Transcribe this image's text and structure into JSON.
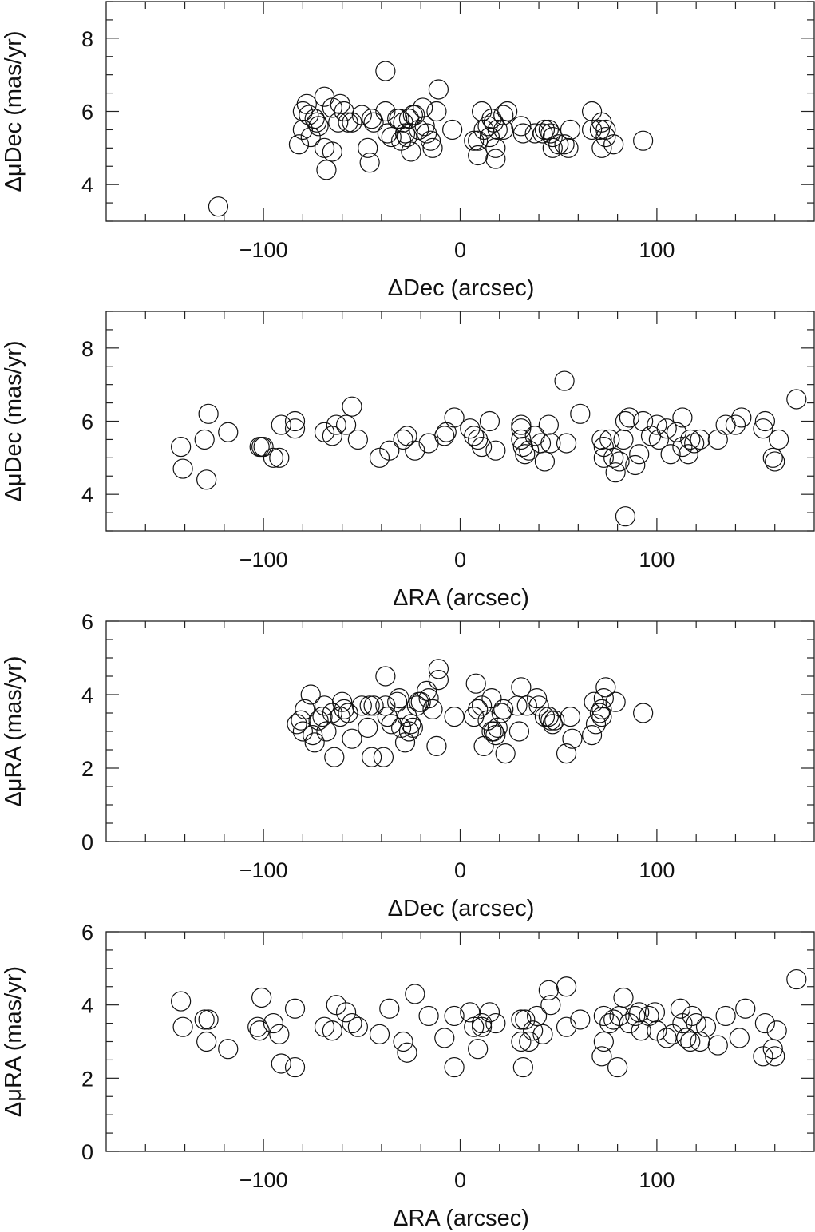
{
  "chart_data": [
    {
      "type": "scatter",
      "xlabel": "ΔDec (arcsec)",
      "ylabel": "ΔμDec (mas/yr)",
      "xlim": [
        -180,
        180
      ],
      "ylim": [
        3,
        9
      ],
      "xticks": [
        -100,
        0,
        100
      ],
      "xtick_labels": [
        "−100",
        "0",
        "100"
      ],
      "yticks": [
        4,
        6,
        8
      ],
      "ytick_labels": [
        "4",
        "6",
        "8"
      ],
      "points": [
        [
          -123,
          3.4
        ],
        [
          -82,
          5.1
        ],
        [
          -80,
          5.5
        ],
        [
          -80,
          6.0
        ],
        [
          -78,
          6.2
        ],
        [
          -77,
          5.9
        ],
        [
          -76,
          5.3
        ],
        [
          -74,
          5.8
        ],
        [
          -73,
          5.7
        ],
        [
          -72,
          5.6
        ],
        [
          -69,
          6.4
        ],
        [
          -69,
          5.0
        ],
        [
          -68,
          4.4
        ],
        [
          -65,
          4.9
        ],
        [
          -65,
          6.1
        ],
        [
          -62,
          5.7
        ],
        [
          -61,
          6.2
        ],
        [
          -59,
          6.0
        ],
        [
          -57,
          5.7
        ],
        [
          -55,
          5.7
        ],
        [
          -50,
          5.9
        ],
        [
          -47,
          5.0
        ],
        [
          -46,
          4.6
        ],
        [
          -45,
          5.8
        ],
        [
          -44,
          5.7
        ],
        [
          -38,
          7.1
        ],
        [
          -38,
          6.0
        ],
        [
          -37,
          5.4
        ],
        [
          -35,
          5.3
        ],
        [
          -32,
          5.8
        ],
        [
          -31,
          5.8
        ],
        [
          -30,
          5.2
        ],
        [
          -29,
          5.7
        ],
        [
          -28,
          5.4
        ],
        [
          -27,
          5.3
        ],
        [
          -26,
          5.8
        ],
        [
          -25,
          4.9
        ],
        [
          -24,
          5.9
        ],
        [
          -23,
          5.9
        ],
        [
          -21,
          5.5
        ],
        [
          -19,
          6.1
        ],
        [
          -18,
          5.6
        ],
        [
          -17,
          5.4
        ],
        [
          -15,
          5.2
        ],
        [
          -14,
          5.0
        ],
        [
          -12,
          6.0
        ],
        [
          -11,
          6.6
        ],
        [
          -4,
          5.5
        ],
        [
          7,
          5.2
        ],
        [
          9,
          5.2
        ],
        [
          9,
          4.8
        ],
        [
          11,
          6.0
        ],
        [
          12,
          5.5
        ],
        [
          14,
          5.6
        ],
        [
          15,
          5.3
        ],
        [
          16,
          5.8
        ],
        [
          17,
          5.7
        ],
        [
          18,
          4.7
        ],
        [
          18,
          5.0
        ],
        [
          19,
          5.5
        ],
        [
          22,
          5.9
        ],
        [
          22,
          5.5
        ],
        [
          24,
          6.0
        ],
        [
          31,
          5.6
        ],
        [
          32,
          5.4
        ],
        [
          38,
          5.4
        ],
        [
          42,
          5.4
        ],
        [
          43,
          5.5
        ],
        [
          45,
          5.5
        ],
        [
          46,
          5.4
        ],
        [
          47,
          5.3
        ],
        [
          47,
          5.0
        ],
        [
          50,
          5.1
        ],
        [
          53,
          5.1
        ],
        [
          55,
          5.0
        ],
        [
          56,
          5.5
        ],
        [
          67,
          6.0
        ],
        [
          67,
          5.5
        ],
        [
          71,
          5.5
        ],
        [
          72,
          5.7
        ],
        [
          72,
          5.0
        ],
        [
          74,
          5.3
        ],
        [
          74,
          5.5
        ],
        [
          78,
          5.1
        ],
        [
          93,
          5.2
        ]
      ]
    },
    {
      "type": "scatter",
      "xlabel": "ΔRA (arcsec)",
      "ylabel": "ΔμDec (mas/yr)",
      "xlim": [
        -180,
        180
      ],
      "ylim": [
        3,
        9
      ],
      "xticks": [
        -100,
        0,
        100
      ],
      "xtick_labels": [
        "−100",
        "0",
        "100"
      ],
      "yticks": [
        4,
        6,
        8
      ],
      "ytick_labels": [
        "4",
        "6",
        "8"
      ],
      "points": [
        [
          -142,
          5.3
        ],
        [
          -141,
          4.7
        ],
        [
          -130,
          5.5
        ],
        [
          -129,
          4.4
        ],
        [
          -128,
          6.2
        ],
        [
          -118,
          5.7
        ],
        [
          -102,
          5.3
        ],
        [
          -101,
          5.3
        ],
        [
          -100,
          5.3
        ],
        [
          -95,
          5.0
        ],
        [
          -92,
          5.0
        ],
        [
          -91,
          5.9
        ],
        [
          -84,
          6.0
        ],
        [
          -84,
          5.8
        ],
        [
          -69,
          5.7
        ],
        [
          -65,
          5.6
        ],
        [
          -63,
          5.9
        ],
        [
          -58,
          5.9
        ],
        [
          -55,
          6.4
        ],
        [
          -52,
          5.5
        ],
        [
          -41,
          5.0
        ],
        [
          -36,
          5.2
        ],
        [
          -29,
          5.5
        ],
        [
          -27,
          5.6
        ],
        [
          -23,
          5.2
        ],
        [
          -16,
          5.4
        ],
        [
          -8,
          5.6
        ],
        [
          -7,
          5.7
        ],
        [
          -3,
          6.1
        ],
        [
          5,
          5.8
        ],
        [
          7,
          5.6
        ],
        [
          9,
          5.5
        ],
        [
          11,
          5.3
        ],
        [
          15,
          6.0
        ],
        [
          18,
          5.2
        ],
        [
          31,
          5.9
        ],
        [
          31,
          5.8
        ],
        [
          31,
          5.5
        ],
        [
          32,
          5.3
        ],
        [
          33,
          5.1
        ],
        [
          35,
          5.2
        ],
        [
          38,
          5.6
        ],
        [
          41,
          5.4
        ],
        [
          43,
          4.9
        ],
        [
          45,
          5.9
        ],
        [
          46,
          5.4
        ],
        [
          53,
          7.1
        ],
        [
          54,
          5.4
        ],
        [
          61,
          6.2
        ],
        [
          72,
          5.5
        ],
        [
          73,
          5.0
        ],
        [
          73,
          5.3
        ],
        [
          76,
          5.5
        ],
        [
          78,
          5.0
        ],
        [
          79,
          4.6
        ],
        [
          81,
          4.9
        ],
        [
          83,
          5.5
        ],
        [
          84,
          3.4
        ],
        [
          84,
          6.0
        ],
        [
          86,
          6.1
        ],
        [
          89,
          4.8
        ],
        [
          91,
          5.1
        ],
        [
          93,
          6.0
        ],
        [
          97,
          5.6
        ],
        [
          100,
          5.9
        ],
        [
          101,
          5.5
        ],
        [
          105,
          5.8
        ],
        [
          107,
          5.1
        ],
        [
          110,
          5.7
        ],
        [
          113,
          6.1
        ],
        [
          113,
          5.3
        ],
        [
          116,
          5.1
        ],
        [
          117,
          5.5
        ],
        [
          119,
          5.4
        ],
        [
          122,
          5.5
        ],
        [
          131,
          5.5
        ],
        [
          135,
          5.9
        ],
        [
          140,
          5.9
        ],
        [
          143,
          6.1
        ],
        [
          154,
          5.8
        ],
        [
          155,
          6.0
        ],
        [
          159,
          5.0
        ],
        [
          160,
          4.9
        ],
        [
          162,
          5.5
        ],
        [
          171,
          6.6
        ]
      ]
    },
    {
      "type": "scatter",
      "xlabel": "ΔDec (arcsec)",
      "ylabel": "ΔμRA (mas/yr)",
      "xlim": [
        -180,
        180
      ],
      "ylim": [
        0,
        6
      ],
      "xticks": [
        -100,
        0,
        100
      ],
      "xtick_labels": [
        "−100",
        "0",
        "100"
      ],
      "yticks": [
        0,
        2,
        4,
        6
      ],
      "ytick_labels": [
        "0",
        "2",
        "4",
        "6"
      ],
      "points": [
        [
          -83,
          3.2
        ],
        [
          -81,
          3.3
        ],
        [
          -80,
          3.0
        ],
        [
          -79,
          3.6
        ],
        [
          -76,
          4.0
        ],
        [
          -75,
          2.9
        ],
        [
          -74,
          2.7
        ],
        [
          -72,
          3.3
        ],
        [
          -70,
          3.4
        ],
        [
          -69,
          3.7
        ],
        [
          -68,
          3.0
        ],
        [
          -65,
          3.5
        ],
        [
          -64,
          2.3
        ],
        [
          -61,
          3.4
        ],
        [
          -60,
          3.8
        ],
        [
          -59,
          3.6
        ],
        [
          -57,
          3.5
        ],
        [
          -55,
          2.8
        ],
        [
          -50,
          3.7
        ],
        [
          -47,
          3.1
        ],
        [
          -46,
          3.7
        ],
        [
          -45,
          2.3
        ],
        [
          -44,
          3.7
        ],
        [
          -39,
          2.3
        ],
        [
          -38,
          3.7
        ],
        [
          -38,
          4.5
        ],
        [
          -37,
          3.4
        ],
        [
          -35,
          3.2
        ],
        [
          -32,
          3.8
        ],
        [
          -31,
          3.9
        ],
        [
          -30,
          3.1
        ],
        [
          -28,
          2.7
        ],
        [
          -27,
          3.4
        ],
        [
          -26,
          3.0
        ],
        [
          -25,
          3.2
        ],
        [
          -24,
          3.1
        ],
        [
          -22,
          3.7
        ],
        [
          -21,
          3.8
        ],
        [
          -20,
          3.8
        ],
        [
          -17,
          4.1
        ],
        [
          -16,
          3.9
        ],
        [
          -14,
          3.6
        ],
        [
          -12,
          2.6
        ],
        [
          -11,
          4.4
        ],
        [
          -11,
          4.7
        ],
        [
          -3,
          3.4
        ],
        [
          7,
          3.4
        ],
        [
          8,
          4.3
        ],
        [
          9,
          3.6
        ],
        [
          11,
          3.7
        ],
        [
          12,
          2.6
        ],
        [
          14,
          3.3
        ],
        [
          16,
          3.9
        ],
        [
          16,
          3.0
        ],
        [
          17,
          3.0
        ],
        [
          18,
          2.9
        ],
        [
          19,
          3.1
        ],
        [
          21,
          3.5
        ],
        [
          22,
          3.6
        ],
        [
          23,
          2.4
        ],
        [
          29,
          3.7
        ],
        [
          30,
          3.0
        ],
        [
          31,
          4.2
        ],
        [
          34,
          3.7
        ],
        [
          39,
          3.9
        ],
        [
          40,
          3.7
        ],
        [
          43,
          3.4
        ],
        [
          45,
          3.4
        ],
        [
          46,
          3.3
        ],
        [
          47,
          3.2
        ],
        [
          48,
          3.3
        ],
        [
          54,
          2.4
        ],
        [
          56,
          3.4
        ],
        [
          57,
          2.8
        ],
        [
          67,
          2.9
        ],
        [
          68,
          3.8
        ],
        [
          69,
          3.2
        ],
        [
          71,
          3.5
        ],
        [
          72,
          3.4
        ],
        [
          72,
          3.6
        ],
        [
          73,
          3.9
        ],
        [
          74,
          4.2
        ],
        [
          79,
          3.8
        ],
        [
          93,
          3.5
        ]
      ]
    },
    {
      "type": "scatter",
      "xlabel": "ΔRA (arcsec)",
      "ylabel": "ΔμRA (mas/yr)",
      "xlim": [
        -180,
        180
      ],
      "ylim": [
        0,
        6
      ],
      "xticks": [
        -100,
        0,
        100
      ],
      "xtick_labels": [
        "−100",
        "0",
        "100"
      ],
      "yticks": [
        0,
        2,
        4,
        6
      ],
      "ytick_labels": [
        "0",
        "2",
        "4",
        "6"
      ],
      "points": [
        [
          -142,
          4.1
        ],
        [
          -141,
          3.4
        ],
        [
          -130,
          3.6
        ],
        [
          -129,
          3.0
        ],
        [
          -128,
          3.6
        ],
        [
          -118,
          2.8
        ],
        [
          -103,
          3.4
        ],
        [
          -102,
          3.3
        ],
        [
          -101,
          4.2
        ],
        [
          -95,
          3.5
        ],
        [
          -92,
          3.2
        ],
        [
          -91,
          2.4
        ],
        [
          -84,
          3.9
        ],
        [
          -84,
          2.3
        ],
        [
          -69,
          3.4
        ],
        [
          -65,
          3.3
        ],
        [
          -63,
          4.0
        ],
        [
          -58,
          3.8
        ],
        [
          -55,
          3.5
        ],
        [
          -52,
          3.4
        ],
        [
          -41,
          3.2
        ],
        [
          -36,
          3.9
        ],
        [
          -29,
          3.0
        ],
        [
          -27,
          2.7
        ],
        [
          -23,
          4.3
        ],
        [
          -16,
          3.7
        ],
        [
          -8,
          3.1
        ],
        [
          -3,
          3.7
        ],
        [
          -3,
          2.3
        ],
        [
          5,
          3.8
        ],
        [
          7,
          3.4
        ],
        [
          9,
          2.8
        ],
        [
          11,
          3.5
        ],
        [
          11,
          3.4
        ],
        [
          15,
          3.8
        ],
        [
          18,
          3.5
        ],
        [
          31,
          3.6
        ],
        [
          31,
          3.0
        ],
        [
          32,
          2.3
        ],
        [
          33,
          3.6
        ],
        [
          35,
          3.0
        ],
        [
          37,
          3.3
        ],
        [
          39,
          3.7
        ],
        [
          42,
          3.2
        ],
        [
          45,
          4.4
        ],
        [
          46,
          4.0
        ],
        [
          54,
          4.5
        ],
        [
          54,
          3.4
        ],
        [
          61,
          3.6
        ],
        [
          72,
          2.6
        ],
        [
          73,
          3.0
        ],
        [
          73,
          3.7
        ],
        [
          76,
          3.5
        ],
        [
          78,
          3.6
        ],
        [
          80,
          2.3
        ],
        [
          81,
          3.7
        ],
        [
          83,
          4.2
        ],
        [
          86,
          3.5
        ],
        [
          89,
          3.7
        ],
        [
          91,
          3.8
        ],
        [
          92,
          3.3
        ],
        [
          96,
          3.7
        ],
        [
          99,
          3.8
        ],
        [
          100,
          3.3
        ],
        [
          105,
          3.1
        ],
        [
          108,
          3.2
        ],
        [
          112,
          3.9
        ],
        [
          113,
          3.5
        ],
        [
          115,
          3.1
        ],
        [
          117,
          3.0
        ],
        [
          118,
          3.7
        ],
        [
          120,
          3.5
        ],
        [
          122,
          3.0
        ],
        [
          125,
          3.4
        ],
        [
          131,
          2.9
        ],
        [
          135,
          3.7
        ],
        [
          142,
          3.1
        ],
        [
          145,
          3.9
        ],
        [
          154,
          2.6
        ],
        [
          155,
          3.5
        ],
        [
          159,
          2.8
        ],
        [
          160,
          2.6
        ],
        [
          161,
          3.3
        ],
        [
          171,
          4.7
        ]
      ]
    }
  ]
}
